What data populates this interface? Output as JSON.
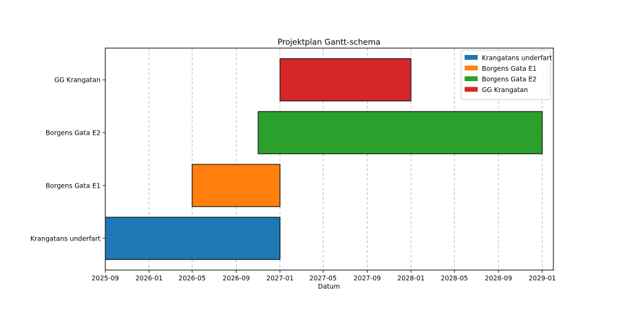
{
  "chart_data": {
    "type": "gantt",
    "title": "Projektplan Gantt-schema",
    "xlabel": "Datum",
    "ylabel": "",
    "xlim": [
      "2025-09-01",
      "2029-02-01"
    ],
    "x_ticks": [
      "2025-09",
      "2026-01",
      "2026-05",
      "2026-09",
      "2027-01",
      "2027-05",
      "2027-09",
      "2028-01",
      "2028-05",
      "2028-09",
      "2029-01"
    ],
    "grid": "x dashed",
    "legend_placement": "top-right",
    "tasks": [
      {
        "name": "Krangatans underfart",
        "start": "2025-09-01",
        "end": "2027-01-01",
        "color": "#1f77b4"
      },
      {
        "name": "Borgens Gata E1",
        "start": "2026-05-01",
        "end": "2027-01-01",
        "color": "#ff7f0e"
      },
      {
        "name": "Borgens Gata E2",
        "start": "2026-11-01",
        "end": "2029-01-01",
        "color": "#2ca02c"
      },
      {
        "name": "GG Krangatan",
        "start": "2027-01-01",
        "end": "2028-01-01",
        "color": "#d62728"
      }
    ]
  }
}
